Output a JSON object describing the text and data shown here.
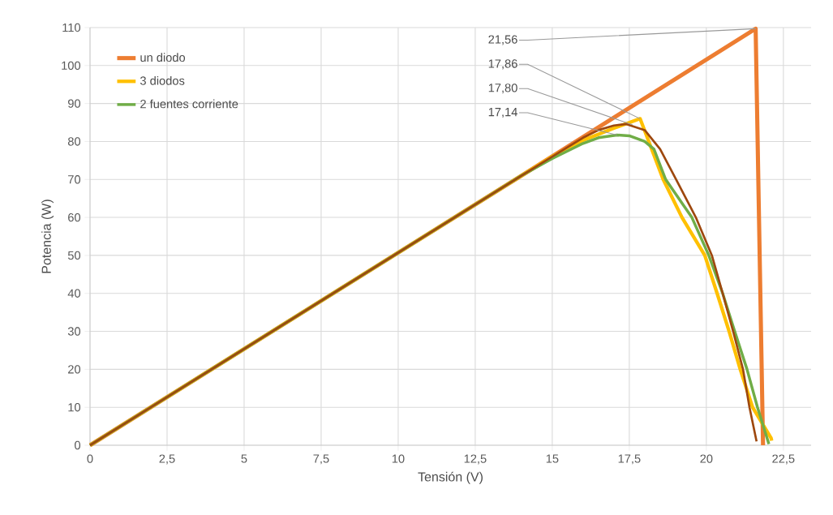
{
  "chart_data": {
    "type": "line",
    "xlabel": "Tensión (V)",
    "ylabel": "Potencia (W)",
    "xlim": [
      0,
      23.4
    ],
    "ylim": [
      0,
      110
    ],
    "xticks": [
      0,
      {
        "value": 2.5,
        "label": "2,5"
      },
      5,
      {
        "value": 7.5,
        "label": "7,5"
      },
      10,
      {
        "value": 12.5,
        "label": "12,5"
      },
      15,
      {
        "value": 17.5,
        "label": "17,5"
      },
      20,
      {
        "value": 22.5,
        "label": "22,5"
      }
    ],
    "yticks": [
      0,
      10,
      20,
      30,
      40,
      50,
      60,
      70,
      80,
      90,
      100,
      110
    ],
    "grid": true,
    "legend": "top left",
    "marker": "none",
    "line_style": "solid",
    "series": [
      {
        "name": "un diodo",
        "color": "#ed7d31",
        "x": [
          0,
          14,
          21.6,
          21.84
        ],
        "values": [
          0,
          71,
          109.7,
          0
        ]
      },
      {
        "name": "3 diodos",
        "color": "#ffc000",
        "x": [
          0,
          14,
          15,
          16,
          17,
          17.85,
          18.6,
          19.21,
          19.95,
          20.35,
          20.74,
          21.1,
          21.5,
          22.1,
          22.12
        ],
        "values": [
          0,
          71,
          76,
          80.3,
          83.5,
          86,
          70,
          60,
          50,
          40,
          30,
          20,
          10,
          1.9,
          1.2
        ]
      },
      {
        "name": "2 fuentes corriente",
        "color": "#70ad47",
        "x": [
          0,
          14,
          15,
          16,
          16.5,
          17.1,
          17.5,
          18,
          18.3,
          18.68,
          19.53,
          20.08,
          20.53,
          20.92,
          21.32,
          21.66,
          22.03
        ],
        "values": [
          0,
          71,
          75.5,
          79.5,
          81,
          81.7,
          81.5,
          80,
          78,
          70,
          60,
          50,
          40,
          30,
          20,
          10,
          0.3
        ]
      },
      {
        "color": "#9e480e",
        "x": [
          0,
          14,
          15,
          16,
          16.5,
          17,
          17.4,
          18,
          18.5,
          19.02,
          19.66,
          20.18,
          20.53,
          20.87,
          21.19,
          21.4,
          21.63
        ],
        "values": [
          0,
          71,
          76,
          81,
          83,
          84.2,
          84.6,
          83,
          78,
          70,
          60,
          50,
          40,
          30,
          20,
          10,
          1
        ]
      }
    ],
    "annotations": [
      {
        "text": "21,56",
        "x": 21.6,
        "y": 109.7
      },
      {
        "text": "17,86",
        "x": 17.85,
        "y": 86
      },
      {
        "text": "17,80",
        "x": 17.6,
        "y": 84.4
      },
      {
        "text": "17,14",
        "x": 17.1,
        "y": 81.7
      }
    ]
  }
}
